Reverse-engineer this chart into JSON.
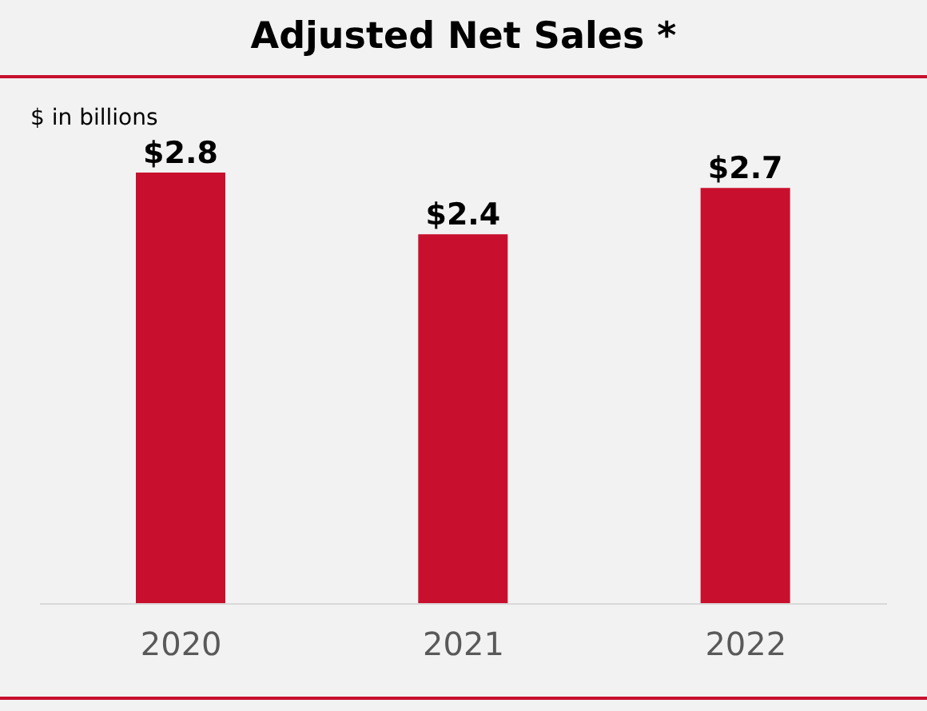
{
  "chart_data": {
    "type": "bar",
    "title": "Adjusted Net Sales *",
    "annotations": [
      "$ in billions"
    ],
    "categories": [
      "2020",
      "2021",
      "2022"
    ],
    "values": [
      2.8,
      2.4,
      2.7
    ],
    "value_labels": [
      "$2.8",
      "$2.4",
      "$2.7"
    ],
    "color": "#c8102e"
  }
}
